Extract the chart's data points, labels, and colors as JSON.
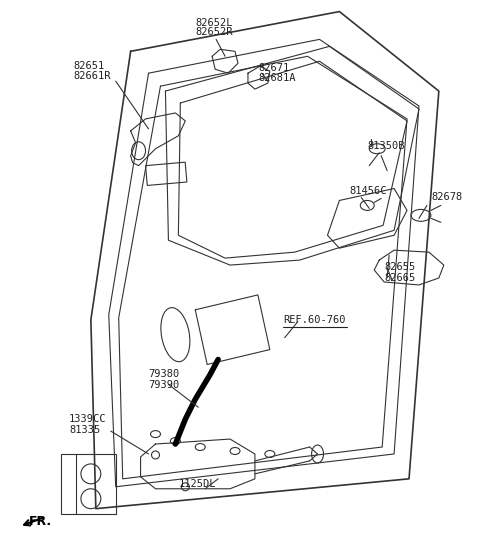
{
  "bg_color": "#ffffff",
  "line_color": "#333333",
  "thick_line_color": "#000000",
  "label_color": "#222222",
  "figsize": [
    4.8,
    5.55
  ],
  "dpi": 100,
  "labels": [
    [
      195,
      16,
      "82652L"
    ],
    [
      195,
      26,
      "82652R"
    ],
    [
      72,
      60,
      "82651"
    ],
    [
      72,
      70,
      "82661R"
    ],
    [
      258,
      62,
      "82671"
    ],
    [
      258,
      72,
      "82681A"
    ],
    [
      368,
      140,
      "81350B"
    ],
    [
      350,
      185,
      "81456C"
    ],
    [
      432,
      192,
      "82678"
    ],
    [
      385,
      262,
      "82655"
    ],
    [
      385,
      273,
      "82665"
    ],
    [
      148,
      370,
      "79380"
    ],
    [
      148,
      381,
      "79390"
    ],
    [
      68,
      415,
      "1339CC"
    ],
    [
      68,
      426,
      "81335"
    ],
    [
      178,
      480,
      "1125DL"
    ]
  ]
}
